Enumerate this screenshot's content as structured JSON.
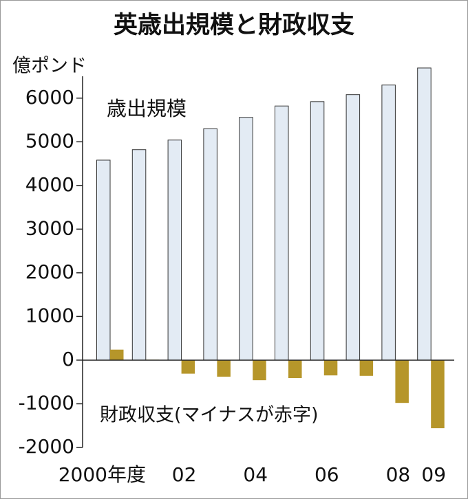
{
  "chart_data": {
    "type": "bar",
    "title": "英歳出規模と財政収支",
    "y_label": "億ポンド",
    "categories": [
      "2000年度",
      null,
      "02",
      null,
      "04",
      null,
      "06",
      null,
      "08",
      "09"
    ],
    "series": [
      {
        "name": "歳出規模",
        "color": "#e3ebf4",
        "values": [
          4580,
          4820,
          5040,
          5300,
          5560,
          5820,
          5920,
          6080,
          6300,
          6690
        ]
      },
      {
        "name": "財政収支(マイナスが赤字)",
        "color": "#b6962a",
        "values": [
          240,
          10,
          -310,
          -380,
          -460,
          -410,
          -350,
          -360,
          -980,
          -1560
        ]
      }
    ],
    "ylim": [
      -2000,
      6500
    ],
    "yticks": [
      -2000,
      -1000,
      0,
      1000,
      2000,
      3000,
      4000,
      5000,
      6000
    ]
  }
}
